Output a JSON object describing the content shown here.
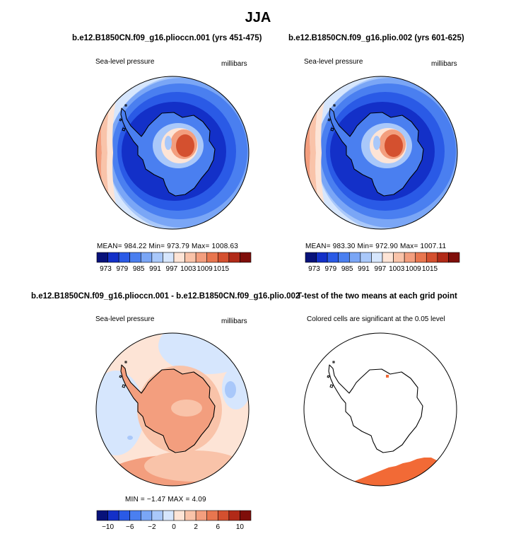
{
  "main_title": "JJA",
  "colors": {
    "scale": [
      "#08127a",
      "#1330c8",
      "#2a5ae6",
      "#4a7ff0",
      "#7aa6f6",
      "#a9c8fa",
      "#d6e6fd",
      "#fde4d6",
      "#f9c3a9",
      "#f39e7e",
      "#e8764f",
      "#d4502f",
      "#b12a18",
      "#7f0e0a"
    ],
    "coastline": "#000000",
    "significant": "#f26a36"
  },
  "panels": [
    {
      "title": "b.e12.B1850CN.f09_g16.plioccn.001 (yrs 451-475)",
      "variable": "Sea-level pressure",
      "units": "millibars",
      "stats": "MEAN=  984.22   Min=  973.79   Max=  1008.63",
      "colorbar_labels": [
        "973",
        "979",
        "985",
        "991",
        "997",
        "1003",
        "1009",
        "1015"
      ]
    },
    {
      "title": "b.e12.B1850CN.f09_g16.plio.002 (yrs 601-625)",
      "variable": "Sea-level pressure",
      "units": "millibars",
      "stats": "MEAN=  983.30   Min=  972.90   Max=  1007.11",
      "colorbar_labels": [
        "973",
        "979",
        "985",
        "991",
        "997",
        "1003",
        "1009",
        "1015"
      ]
    },
    {
      "title": "b.e12.B1850CN.f09_g16.plioccn.001 - b.e12.B1850CN.f09_g16.plio.002",
      "variable": "Sea-level pressure",
      "units": "millibars",
      "stats": "MIN =   −1.47   MAX =     4.09",
      "colorbar_labels": [
        "−10",
        "−6",
        "−2",
        "0",
        "2",
        "6",
        "10"
      ]
    },
    {
      "title": "T-test of the two means at each grid point",
      "note": "Colored cells are significant at the 0.05 level"
    }
  ]
}
